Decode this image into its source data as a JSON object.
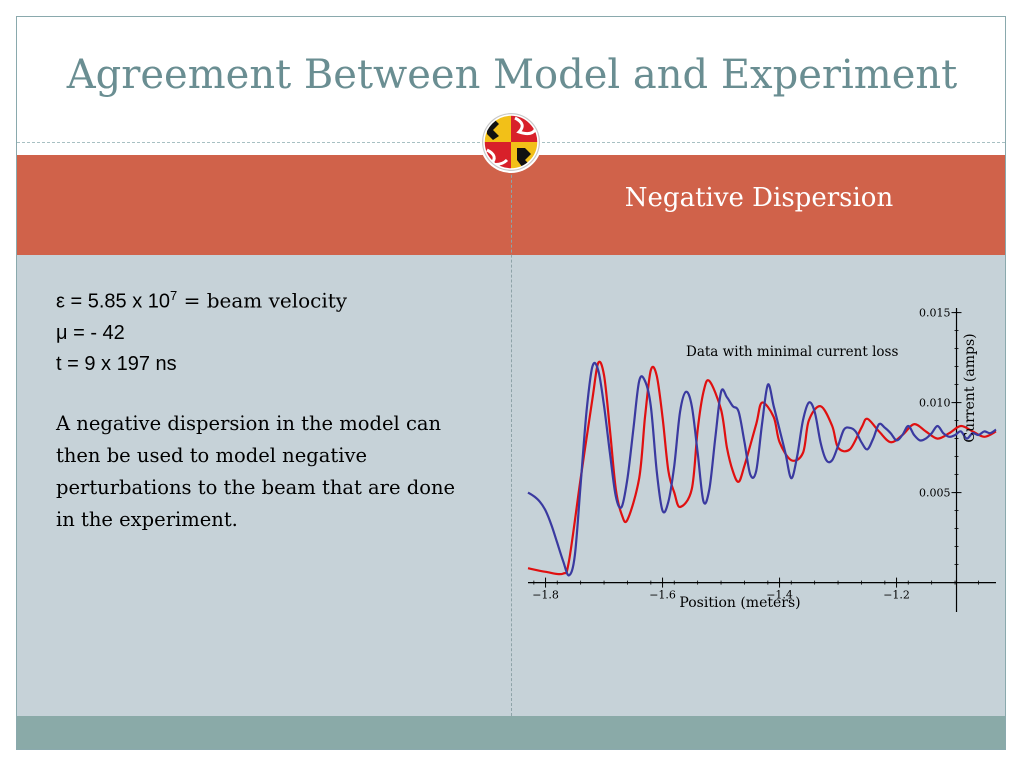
{
  "slide": {
    "title": "Agreement Between Model and Experiment",
    "panel_title": "Negative Dispersion",
    "params": {
      "epsilon_symbol": "ε",
      "epsilon_value": " = 5.85 x 10",
      "epsilon_exp": "7",
      "epsilon_desc": " = beam velocity",
      "mu": "μ = - 42",
      "t": "t = 9 x 197 ns"
    },
    "paragraph": "A negative dispersion in the model can then be used to model negative perturbations to the beam that are done in the experiment.",
    "colors": {
      "accent_red": "#d0624a",
      "title_teal": "#6a8e92",
      "panel_bg": "#c6d2d8",
      "footer_teal": "#8aaaa8"
    }
  },
  "chart_data": {
    "type": "line",
    "annotation": "Data with minimal current loss",
    "xlabel": "Position (meters)",
    "ylabel": "Current (amps)",
    "xlim": [
      -1.83,
      -1.03
    ],
    "ylim": [
      -0.0003,
      0.0157
    ],
    "x_ticks": [
      -1.8,
      -1.6,
      -1.4,
      -1.2
    ],
    "x_tick_labels": [
      "−1.8",
      "−1.6",
      "−1.4",
      "−1.2"
    ],
    "y_ticks": [
      0.005,
      0.01,
      0.015
    ],
    "y_tick_labels": [
      "0.005",
      "0.010",
      "0.015"
    ],
    "series": [
      {
        "color": "#e01010",
        "x": [
          -1.83,
          -1.8,
          -1.77,
          -1.76,
          -1.74,
          -1.72,
          -1.71,
          -1.7,
          -1.69,
          -1.68,
          -1.67,
          -1.66,
          -1.64,
          -1.63,
          -1.62,
          -1.61,
          -1.6,
          -1.59,
          -1.58,
          -1.57,
          -1.55,
          -1.54,
          -1.53,
          -1.52,
          -1.5,
          -1.49,
          -1.48,
          -1.47,
          -1.46,
          -1.44,
          -1.43,
          -1.41,
          -1.4,
          -1.38,
          -1.36,
          -1.35,
          -1.33,
          -1.31,
          -1.3,
          -1.28,
          -1.26,
          -1.25,
          -1.23,
          -1.21,
          -1.19,
          -1.17,
          -1.15,
          -1.13,
          -1.11,
          -1.09,
          -1.07,
          -1.05,
          -1.03
        ],
        "y": [
          0.0008,
          0.0006,
          0.0005,
          0.0012,
          0.0058,
          0.0102,
          0.0122,
          0.0115,
          0.0085,
          0.0052,
          0.0038,
          0.0035,
          0.0058,
          0.0092,
          0.0118,
          0.0115,
          0.0092,
          0.0062,
          0.005,
          0.0042,
          0.0052,
          0.0085,
          0.0106,
          0.0112,
          0.0096,
          0.0075,
          0.0062,
          0.0056,
          0.0065,
          0.0088,
          0.01,
          0.0092,
          0.0078,
          0.0068,
          0.0072,
          0.009,
          0.0098,
          0.0087,
          0.0075,
          0.0074,
          0.0086,
          0.0091,
          0.0084,
          0.0078,
          0.0082,
          0.0088,
          0.0084,
          0.008,
          0.0083,
          0.0087,
          0.0084,
          0.0081,
          0.0084
        ]
      },
      {
        "color": "#3a3aa0",
        "x": [
          -1.83,
          -1.82,
          -1.81,
          -1.8,
          -1.79,
          -1.78,
          -1.77,
          -1.76,
          -1.75,
          -1.74,
          -1.73,
          -1.72,
          -1.71,
          -1.7,
          -1.69,
          -1.68,
          -1.67,
          -1.66,
          -1.65,
          -1.64,
          -1.63,
          -1.62,
          -1.61,
          -1.6,
          -1.59,
          -1.58,
          -1.57,
          -1.56,
          -1.55,
          -1.54,
          -1.53,
          -1.52,
          -1.51,
          -1.5,
          -1.49,
          -1.48,
          -1.47,
          -1.46,
          -1.45,
          -1.44,
          -1.43,
          -1.42,
          -1.41,
          -1.4,
          -1.39,
          -1.38,
          -1.37,
          -1.36,
          -1.35,
          -1.34,
          -1.33,
          -1.32,
          -1.31,
          -1.3,
          -1.29,
          -1.28,
          -1.27,
          -1.26,
          -1.25,
          -1.24,
          -1.23,
          -1.22,
          -1.21,
          -1.2,
          -1.19,
          -1.18,
          -1.17,
          -1.16,
          -1.15,
          -1.14,
          -1.13,
          -1.12,
          -1.11,
          -1.1,
          -1.09,
          -1.08,
          -1.07,
          -1.06,
          -1.05,
          -1.04,
          -1.03
        ],
        "y": [
          0.005,
          0.0048,
          0.0045,
          0.004,
          0.0032,
          0.0022,
          0.0012,
          0.0004,
          0.0015,
          0.0055,
          0.0095,
          0.012,
          0.0118,
          0.0098,
          0.0072,
          0.0048,
          0.0042,
          0.0058,
          0.0085,
          0.0112,
          0.0112,
          0.0098,
          0.0062,
          0.004,
          0.0045,
          0.0065,
          0.0095,
          0.0106,
          0.0098,
          0.0072,
          0.0045,
          0.0052,
          0.008,
          0.0106,
          0.0103,
          0.0098,
          0.0095,
          0.0078,
          0.006,
          0.0062,
          0.0088,
          0.011,
          0.0098,
          0.0085,
          0.0072,
          0.0058,
          0.007,
          0.009,
          0.01,
          0.0095,
          0.0078,
          0.0068,
          0.0068,
          0.0076,
          0.0085,
          0.0086,
          0.0084,
          0.0078,
          0.0074,
          0.008,
          0.0088,
          0.0086,
          0.0083,
          0.0079,
          0.0082,
          0.0087,
          0.0082,
          0.0079,
          0.008,
          0.0083,
          0.0087,
          0.0083,
          0.0081,
          0.0082,
          0.0084,
          0.008,
          0.0083,
          0.0082,
          0.0084,
          0.0083,
          0.0085
        ]
      }
    ]
  }
}
